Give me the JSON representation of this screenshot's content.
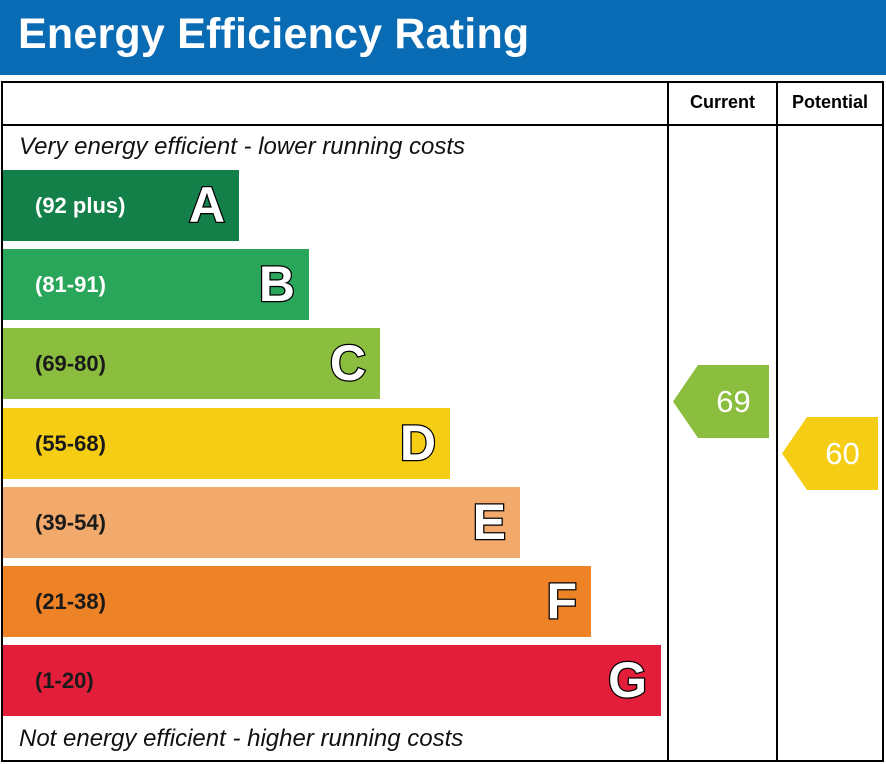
{
  "header": {
    "title": "Energy Efficiency Rating",
    "color": "#0a6bb5"
  },
  "columns": {
    "current_label": "Current",
    "potential_label": "Potential"
  },
  "notes": {
    "top": "Very energy efficient - lower running costs",
    "bottom": "Not energy efficient - higher running costs"
  },
  "chart_data": {
    "type": "bar",
    "title": "Energy Efficiency Rating",
    "bands": [
      {
        "letter": "A",
        "range": "(92 plus)",
        "color": "#128048",
        "text_color": "#ffffff"
      },
      {
        "letter": "B",
        "range": "(81-91)",
        "color": "#2aa65a",
        "text_color": "#ffffff"
      },
      {
        "letter": "C",
        "range": "(69-80)",
        "color": "#8bbd3e",
        "text_color": "#1a1a1a"
      },
      {
        "letter": "D",
        "range": "(55-68)",
        "color": "#f6cd15",
        "text_color": "#1a1a1a"
      },
      {
        "letter": "E",
        "range": "(39-54)",
        "color": "#f2a96c",
        "text_color": "#1a1a1a"
      },
      {
        "letter": "F",
        "range": "(21-38)",
        "color": "#ee8226",
        "text_color": "#1a1a1a"
      },
      {
        "letter": "G",
        "range": "(1-20)",
        "color": "#e31e3b",
        "text_color": "#1a1a1a"
      }
    ],
    "ratings": {
      "current": {
        "value": 69,
        "band": "C",
        "color": "#8bbd3e"
      },
      "potential": {
        "value": 60,
        "band": "D",
        "color": "#f6cd15"
      }
    }
  }
}
